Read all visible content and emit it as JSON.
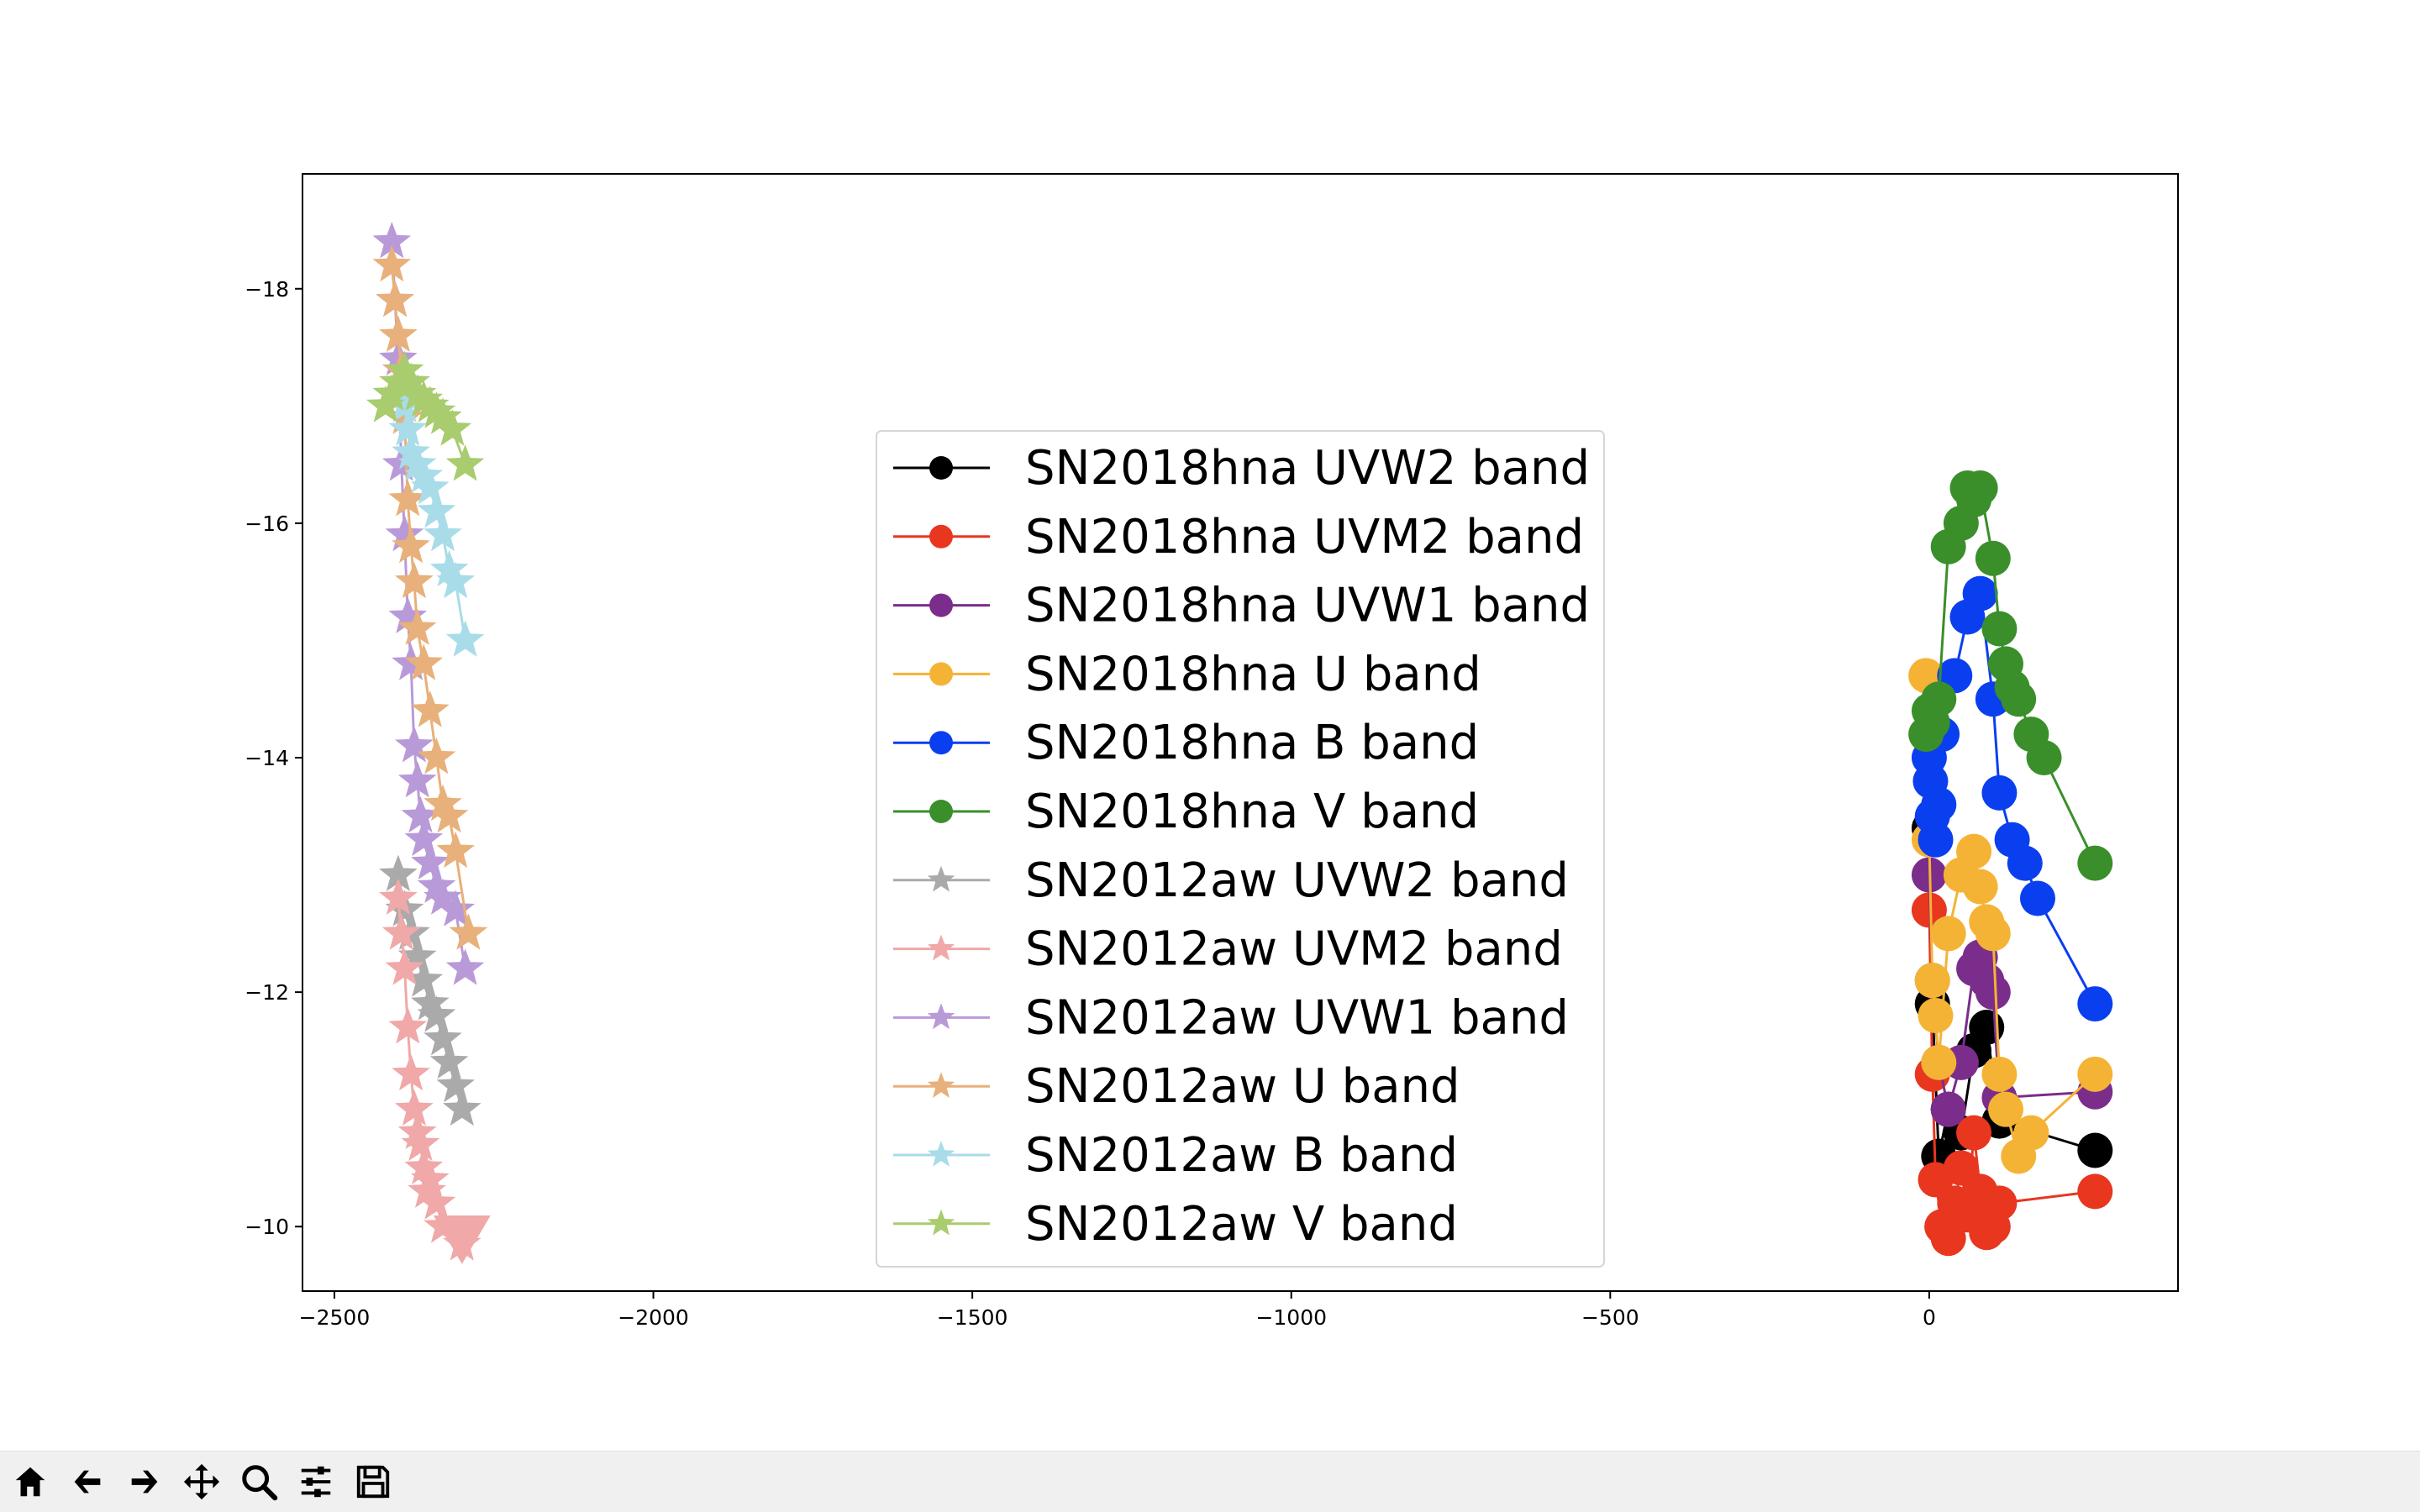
{
  "toolbar": {
    "buttons": [
      {
        "name": "home-icon",
        "tooltip": "Home"
      },
      {
        "name": "back-arrow-icon",
        "tooltip": "Back"
      },
      {
        "name": "forward-arrow-icon",
        "tooltip": "Forward"
      },
      {
        "name": "pan-icon",
        "tooltip": "Pan"
      },
      {
        "name": "zoom-icon",
        "tooltip": "Zoom"
      },
      {
        "name": "configure-subplots-icon",
        "tooltip": "Configure subplots"
      },
      {
        "name": "save-icon",
        "tooltip": "Save"
      }
    ]
  },
  "chart_data": {
    "type": "line",
    "title": "",
    "xlabel": "",
    "ylabel": "",
    "xlim": [
      -2550,
      390
    ],
    "ylim": [
      -9.45,
      -18.98
    ],
    "y_inverted": true,
    "xticks": [
      -2500,
      -2000,
      -1500,
      -1000,
      -500,
      0
    ],
    "xtick_labels": [
      "−2500",
      "−2000",
      "−1500",
      "−1000",
      "−500",
      "0"
    ],
    "yticks": [
      -18,
      -16,
      -14,
      -12,
      -10
    ],
    "ytick_labels": [
      "−18",
      "−16",
      "−14",
      "−12",
      "−10"
    ],
    "grid": false,
    "legend_position": "center",
    "series": [
      {
        "name": "SN2018hna UVW2 band",
        "color": "#000000",
        "marker": "circle",
        "x": [
          0,
          5,
          15,
          30,
          50,
          70,
          90,
          110,
          260
        ],
        "y": [
          -13.4,
          -11.9,
          -10.6,
          -11.0,
          -10.8,
          -11.5,
          -11.7,
          -10.9,
          -10.65
        ]
      },
      {
        "name": "SN2018hna UVM2 band",
        "color": "#e8361f",
        "marker": "circle",
        "x": [
          0,
          5,
          10,
          20,
          30,
          40,
          50,
          60,
          70,
          80,
          90,
          100,
          110,
          260
        ],
        "y": [
          -12.7,
          -11.3,
          -10.4,
          -10.0,
          -9.9,
          -10.2,
          -10.5,
          -10.1,
          -10.8,
          -10.3,
          -9.95,
          -10.0,
          -10.2,
          -10.3
        ]
      },
      {
        "name": "SN2018hna UVW1 band",
        "color": "#7b2d8b",
        "marker": "circle",
        "x": [
          0,
          5,
          15,
          30,
          50,
          70,
          80,
          90,
          100,
          110,
          260
        ],
        "y": [
          -13.0,
          -12.1,
          -11.4,
          -11.0,
          -11.4,
          -12.2,
          -12.3,
          -12.1,
          -12.0,
          -11.1,
          -11.15
        ]
      },
      {
        "name": "SN2018hna U band",
        "color": "#f5b335",
        "marker": "circle",
        "x": [
          -5,
          0,
          5,
          10,
          15,
          30,
          50,
          70,
          80,
          90,
          100,
          110,
          120,
          140,
          160,
          260
        ],
        "y": [
          -14.7,
          -13.3,
          -12.1,
          -11.8,
          -11.4,
          -12.5,
          -13.0,
          -13.2,
          -12.9,
          -12.6,
          -12.5,
          -11.3,
          -11.0,
          -10.6,
          -10.8,
          -11.3
        ]
      },
      {
        "name": "SN2018hna B band",
        "color": "#0a3ff0",
        "marker": "circle",
        "x": [
          0,
          2,
          5,
          10,
          15,
          20,
          40,
          60,
          80,
          100,
          110,
          130,
          150,
          170,
          260
        ],
        "y": [
          -14.0,
          -13.8,
          -13.5,
          -13.3,
          -13.6,
          -14.2,
          -14.7,
          -15.2,
          -15.4,
          -14.5,
          -13.7,
          -13.3,
          -13.1,
          -12.8,
          -11.9
        ]
      },
      {
        "name": "SN2018hna V band",
        "color": "#3a8f2a",
        "marker": "circle",
        "x": [
          -5,
          0,
          5,
          15,
          30,
          50,
          60,
          70,
          80,
          100,
          110,
          120,
          130,
          140,
          160,
          180,
          260
        ],
        "y": [
          -14.2,
          -14.4,
          -14.3,
          -14.5,
          -15.8,
          -16.0,
          -16.3,
          -16.2,
          -16.3,
          -15.7,
          -15.1,
          -14.8,
          -14.6,
          -14.5,
          -14.2,
          -14.0,
          -13.1
        ]
      },
      {
        "name": "SN2012aw UVW2 band",
        "color": "#aaaaaa",
        "marker": "star",
        "x": [
          -2400,
          -2390,
          -2380,
          -2370,
          -2360,
          -2350,
          -2340,
          -2330,
          -2320,
          -2310,
          -2300
        ],
        "y": [
          -13.0,
          -12.7,
          -12.5,
          -12.3,
          -12.1,
          -11.9,
          -11.8,
          -11.6,
          -11.4,
          -11.2,
          -11.0
        ]
      },
      {
        "name": "SN2012aw UVM2 band",
        "color": "#f0a8a8",
        "marker": "star",
        "x": [
          -2400,
          -2395,
          -2390,
          -2385,
          -2380,
          -2375,
          -2370,
          -2365,
          -2360,
          -2355,
          -2350,
          -2340,
          -2330,
          -2300
        ],
        "y": [
          -12.8,
          -12.5,
          -12.2,
          -11.7,
          -11.3,
          -11.0,
          -10.8,
          -10.7,
          -10.5,
          -10.3,
          -10.4,
          -10.2,
          -10.0,
          -9.85
        ]
      },
      {
        "name": "SN2012aw UVW1 band",
        "color": "#b99ad8",
        "marker": "star",
        "x": [
          -2410,
          -2405,
          -2400,
          -2395,
          -2390,
          -2385,
          -2380,
          -2375,
          -2370,
          -2365,
          -2360,
          -2350,
          -2340,
          -2330,
          -2310,
          -2295
        ],
        "y": [
          -18.4,
          -17.9,
          -17.4,
          -16.5,
          -15.9,
          -15.2,
          -14.8,
          -14.1,
          -13.8,
          -13.5,
          -13.3,
          -13.1,
          -12.9,
          -12.8,
          -12.7,
          -12.2
        ]
      },
      {
        "name": "SN2012aw U band",
        "color": "#e8b07a",
        "marker": "star",
        "x": [
          -2410,
          -2405,
          -2400,
          -2395,
          -2390,
          -2385,
          -2380,
          -2375,
          -2370,
          -2360,
          -2350,
          -2340,
          -2330,
          -2320,
          -2310,
          -2290
        ],
        "y": [
          -18.2,
          -17.9,
          -17.6,
          -17.3,
          -16.9,
          -16.2,
          -15.8,
          -15.5,
          -15.1,
          -14.8,
          -14.4,
          -14.0,
          -13.6,
          -13.5,
          -13.2,
          -12.5
        ]
      },
      {
        "name": "SN2012aw B band",
        "color": "#a8dce8",
        "marker": "star",
        "x": [
          -2395,
          -2390,
          -2385,
          -2380,
          -2370,
          -2360,
          -2350,
          -2340,
          -2330,
          -2320,
          -2310,
          -2295
        ],
        "y": [
          -17.2,
          -17.0,
          -16.8,
          -16.6,
          -16.5,
          -16.4,
          -16.3,
          -16.1,
          -15.9,
          -15.6,
          -15.5,
          -15.0
        ]
      },
      {
        "name": "SN2012aw V band",
        "color": "#a8cc6e",
        "marker": "star",
        "x": [
          -2420,
          -2410,
          -2400,
          -2390,
          -2380,
          -2370,
          -2360,
          -2350,
          -2340,
          -2330,
          -2315,
          -2295
        ],
        "y": [
          -17.0,
          -17.1,
          -17.2,
          -17.3,
          -17.2,
          -17.1,
          -17.05,
          -17.0,
          -16.95,
          -16.9,
          -16.8,
          -16.5
        ]
      }
    ],
    "extra_markers": [
      {
        "name": "uvm2-upper-limit",
        "color": "#f0a8a8",
        "marker": "triangle-down",
        "x": -2300,
        "y": -9.9
      }
    ]
  }
}
